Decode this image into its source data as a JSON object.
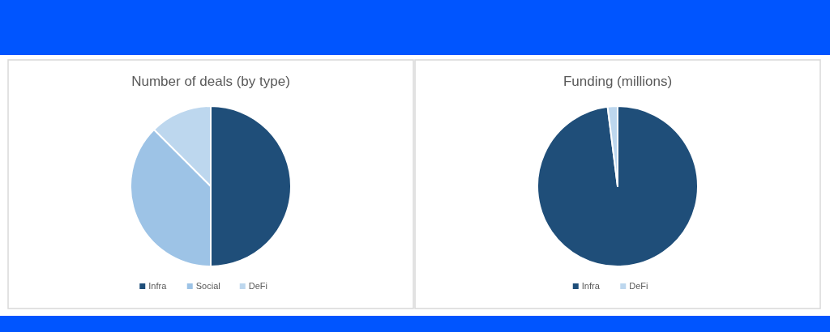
{
  "chart_data": [
    {
      "type": "pie",
      "title": "Number of deals (by type)",
      "categories": [
        "Infra",
        "Social",
        "DeFi"
      ],
      "values": [
        50,
        37.5,
        12.5
      ],
      "colors": [
        "#1f4e79",
        "#9dc3e6",
        "#bdd7ee"
      ],
      "legend": "bottom"
    },
    {
      "type": "pie",
      "title": "Funding (millions)",
      "categories": [
        "Infra",
        "DeFi"
      ],
      "values": [
        98,
        2
      ],
      "colors": [
        "#1f4e79",
        "#bdd7ee"
      ],
      "legend": "bottom"
    }
  ]
}
